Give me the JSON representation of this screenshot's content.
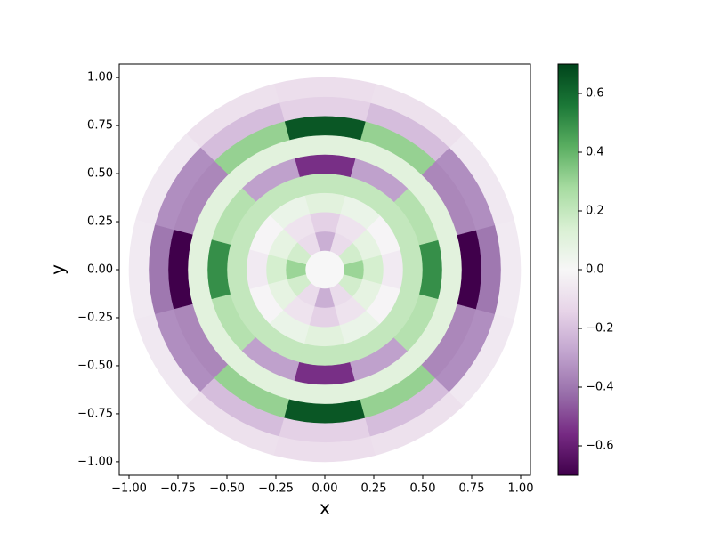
{
  "chart_data": {
    "type": "heatmap",
    "x_label": "x",
    "y_label": "y",
    "r": [
      0.05,
      0.15,
      0.25,
      0.35,
      0.45,
      0.55,
      0.65,
      0.75,
      0.85,
      0.95
    ],
    "theta": [
      0,
      30,
      60,
      90,
      120,
      150,
      180,
      210,
      240,
      270,
      300,
      330
    ],
    "values": [
      [
        0,
        0,
        0,
        0,
        0,
        0,
        0,
        0,
        0,
        0,
        0,
        0
      ],
      [
        0.3,
        0.16,
        -0.11,
        -0.25,
        -0.11,
        0.16,
        0.3,
        0.16,
        -0.11,
        -0.25,
        -0.11,
        0.16
      ],
      [
        0.15,
        0.08,
        -0.08,
        -0.15,
        -0.08,
        0.08,
        0.15,
        0.08,
        -0.08,
        -0.15,
        -0.08,
        0.08
      ],
      [
        -0.05,
        -0.01,
        0.06,
        0.1,
        0.06,
        -0.01,
        -0.05,
        -0.01,
        0.06,
        0.1,
        0.06,
        -0.01
      ],
      [
        0.2,
        0.2,
        0.2,
        0.2,
        0.2,
        0.2,
        0.2,
        0.2,
        0.2,
        0.2,
        0.2,
        0.2
      ],
      [
        0.5,
        0.24,
        -0.29,
        -0.55,
        -0.29,
        0.24,
        0.5,
        0.24,
        -0.29,
        -0.55,
        -0.29,
        0.24
      ],
      [
        0.1,
        0.1,
        0.1,
        0.1,
        0.1,
        0.1,
        0.1,
        0.1,
        0.1,
        0.1,
        0.1,
        0.1
      ],
      [
        -0.7,
        -0.36,
        0.31,
        0.65,
        0.31,
        -0.36,
        -0.7,
        -0.36,
        0.31,
        0.65,
        0.31,
        -0.36
      ],
      [
        -0.4,
        -0.34,
        -0.21,
        -0.15,
        -0.21,
        -0.34,
        -0.4,
        -0.34,
        -0.21,
        -0.15,
        -0.21,
        -0.34
      ],
      [
        -0.05,
        -0.06,
        -0.09,
        -0.1,
        -0.09,
        -0.06,
        -0.05,
        -0.06,
        -0.09,
        -0.1,
        -0.09,
        -0.06
      ]
    ],
    "colormap": [
      "#40004b",
      "#762a83",
      "#9970ab",
      "#c2a5cf",
      "#e7d4e8",
      "#f7f7f7",
      "#d9f0d3",
      "#a6dba0",
      "#5aae61",
      "#1b7837",
      "#00441b"
    ],
    "clim": [
      -0.7,
      0.7
    ],
    "cticks": [
      {
        "value": -0.6,
        "label": "−0.6"
      },
      {
        "value": -0.4,
        "label": "−0.4"
      },
      {
        "value": -0.2,
        "label": "−0.2"
      },
      {
        "value": 0,
        "label": "0.0"
      },
      {
        "value": 0.2,
        "label": "0.2"
      },
      {
        "value": 0.4,
        "label": "0.4"
      },
      {
        "value": 0.6,
        "label": "0.6"
      }
    ],
    "xlim": [
      -1.05,
      1.05
    ],
    "ylim": [
      -1.07,
      1.07
    ],
    "xticks": [
      {
        "value": -1,
        "label": "−1.00"
      },
      {
        "value": -0.75,
        "label": "−0.75"
      },
      {
        "value": -0.5,
        "label": "−0.50"
      },
      {
        "value": -0.25,
        "label": "−0.25"
      },
      {
        "value": 0,
        "label": "0.00"
      },
      {
        "value": 0.25,
        "label": "0.25"
      },
      {
        "value": 0.5,
        "label": "0.50"
      },
      {
        "value": 0.75,
        "label": "0.75"
      },
      {
        "value": 1,
        "label": "1.00"
      }
    ],
    "yticks": [
      {
        "value": -1,
        "label": "−1.00"
      },
      {
        "value": -0.75,
        "label": "−0.75"
      },
      {
        "value": -0.5,
        "label": "−0.50"
      },
      {
        "value": -0.25,
        "label": "−0.25"
      },
      {
        "value": 0,
        "label": "0.00"
      },
      {
        "value": 0.25,
        "label": "0.25"
      },
      {
        "value": 0.5,
        "label": "0.50"
      },
      {
        "value": 0.75,
        "label": "0.75"
      },
      {
        "value": 1,
        "label": "1.00"
      }
    ]
  }
}
